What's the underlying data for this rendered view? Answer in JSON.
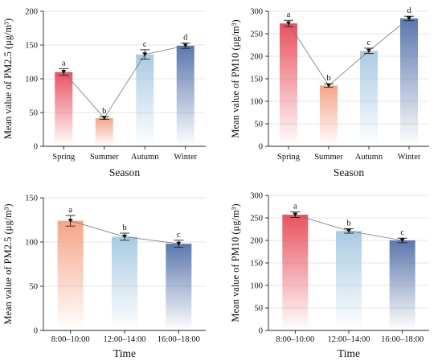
{
  "chart_data": [
    {
      "type": "bar",
      "categories": [
        "Spring",
        "Summer",
        "Autumn",
        "Winter"
      ],
      "values": [
        110,
        42,
        136,
        149
      ],
      "errors": [
        5,
        2,
        7,
        4
      ],
      "significance": [
        "a",
        "b",
        "c",
        "d"
      ],
      "ylabel": "Mean value of PM2.5 (μg/m³)",
      "xlabel": "Season",
      "ylim": [
        0,
        200
      ],
      "yticks": [
        0,
        50,
        100,
        150,
        200
      ],
      "colors": [
        "#e8525e",
        "#f5a488",
        "#a8cbe2",
        "#5a77ad"
      ],
      "grid": true
    },
    {
      "type": "bar",
      "categories": [
        "Spring",
        "Summer",
        "Autumn",
        "Winter"
      ],
      "values": [
        273,
        135,
        212,
        284
      ],
      "errors": [
        7,
        4,
        6,
        5
      ],
      "significance": [
        "a",
        "b",
        "c",
        "d"
      ],
      "ylabel": "Mean value of PM10 (μg/m³)",
      "xlabel": "Season",
      "ylim": [
        0,
        300
      ],
      "yticks": [
        0,
        50,
        100,
        150,
        200,
        250,
        300
      ],
      "colors": [
        "#e8525e",
        "#f5a488",
        "#a8cbe2",
        "#5a77ad"
      ],
      "grid": true
    },
    {
      "type": "bar",
      "categories": [
        "8:00–10:00",
        "12:00–14:00",
        "16:00–18:00"
      ],
      "values": [
        124,
        106,
        98
      ],
      "errors": [
        6,
        4,
        4
      ],
      "significance": [
        "a",
        "b",
        "c"
      ],
      "ylabel": "Mean value of PM2.5 (μg/m³)",
      "xlabel": "Time",
      "ylim": [
        0,
        150
      ],
      "yticks": [
        0,
        50,
        100,
        150
      ],
      "colors": [
        "#f5a488",
        "#a8cbe2",
        "#5a77ad"
      ],
      "grid": true
    },
    {
      "type": "bar",
      "categories": [
        "8:00–10:00",
        "12:00–14:00",
        "16:00–18:00"
      ],
      "values": [
        257,
        221,
        200
      ],
      "errors": [
        6,
        5,
        5
      ],
      "significance": [
        "a",
        "b",
        "c"
      ],
      "ylabel": "Mean value of PM10 (μg/m³)",
      "xlabel": "Time",
      "ylim": [
        0,
        300
      ],
      "yticks": [
        0,
        50,
        100,
        150,
        200,
        250,
        300
      ],
      "colors": [
        "#e8525e",
        "#a8cbe2",
        "#5a77ad"
      ],
      "grid": true
    }
  ]
}
